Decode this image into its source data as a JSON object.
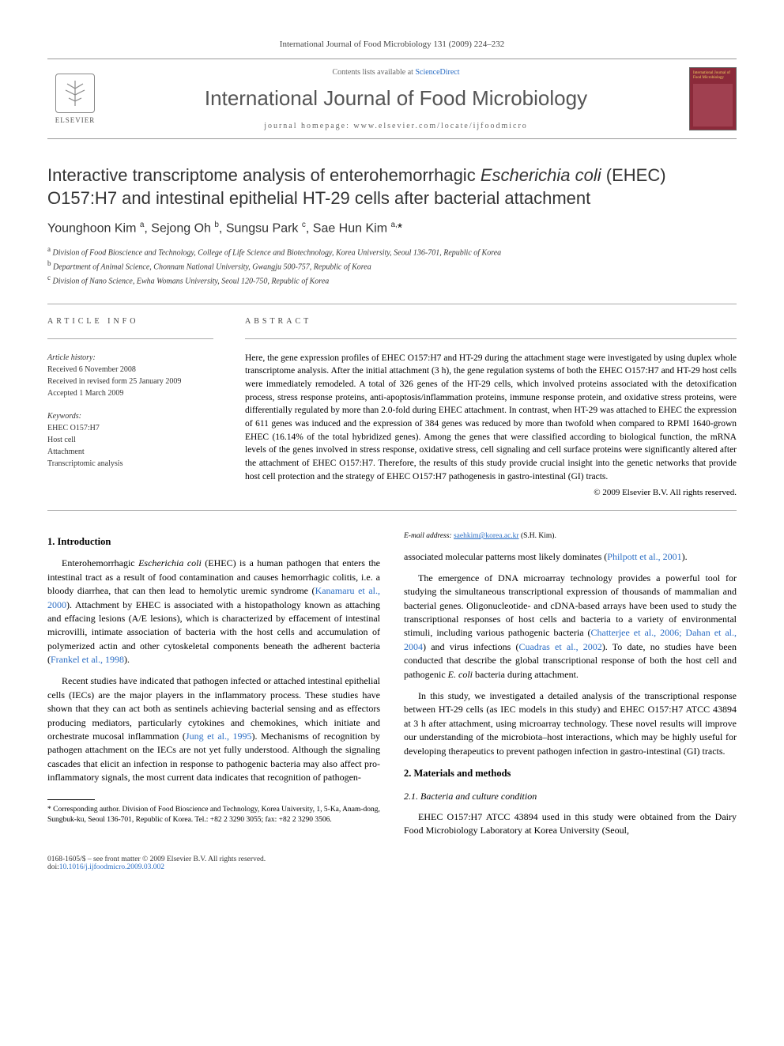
{
  "journal": {
    "header_line": "International Journal of Food Microbiology 131 (2009) 224–232",
    "contents_prefix": "Contents lists available at ",
    "contents_link": "ScienceDirect",
    "name": "International Journal of Food Microbiology",
    "homepage_prefix": "journal homepage: ",
    "homepage_url": "www.elsevier.com/locate/ijfoodmicro",
    "publisher": "ELSEVIER",
    "cover_label": "International Journal of Food Microbiology"
  },
  "article": {
    "title_part1": "Interactive transcriptome analysis of enterohemorrhagic ",
    "title_italic": "Escherichia coli",
    "title_part2": " (EHEC) O157:H7 and intestinal epithelial HT-29 cells after bacterial attachment",
    "authors_html": "Younghoon Kim <sup>a</sup>, Sejong Oh <sup>b</sup>, Sungsu Park <sup>c</sup>, Sae Hun Kim <sup>a,</sup><span class='star-corr'>*</span>",
    "affiliations": [
      {
        "sup": "a",
        "text": "Division of Food Bioscience and Technology, College of Life Science and Biotechnology, Korea University, Seoul 136-701, Republic of Korea"
      },
      {
        "sup": "b",
        "text": "Department of Animal Science, Chonnam National University, Gwangju 500-757, Republic of Korea"
      },
      {
        "sup": "c",
        "text": "Division of Nano Science, Ewha Womans University, Seoul 120-750, Republic of Korea"
      }
    ]
  },
  "info": {
    "header": "ARTICLE INFO",
    "history_label": "Article history:",
    "received": "Received 6 November 2008",
    "revised": "Received in revised form 25 January 2009",
    "accepted": "Accepted 1 March 2009",
    "keywords_label": "Keywords:",
    "keywords": [
      "EHEC O157:H7",
      "Host cell",
      "Attachment",
      "Transcriptomic analysis"
    ]
  },
  "abstract": {
    "header": "ABSTRACT",
    "text": "Here, the gene expression profiles of EHEC O157:H7 and HT-29 during the attachment stage were investigated by using duplex whole transcriptome analysis. After the initial attachment (3 h), the gene regulation systems of both the EHEC O157:H7 and HT-29 host cells were immediately remodeled. A total of 326 genes of the HT-29 cells, which involved proteins associated with the detoxification process, stress response proteins, anti-apoptosis/inflammation proteins, immune response protein, and oxidative stress proteins, were differentially regulated by more than 2.0-fold during EHEC attachment. In contrast, when HT-29 was attached to EHEC the expression of 611 genes was induced and the expression of 384 genes was reduced by more than twofold when compared to RPMI 1640-grown EHEC (16.14% of the total hybridized genes). Among the genes that were classified according to biological function, the mRNA levels of the genes involved in stress response, oxidative stress, cell signaling and cell surface proteins were significantly altered after the attachment of EHEC O157:H7. Therefore, the results of this study provide crucial insight into the genetic networks that provide host cell protection and the strategy of EHEC O157:H7 pathogenesis in gastro-intestinal (GI) tracts.",
    "copyright": "© 2009 Elsevier B.V. All rights reserved."
  },
  "body": {
    "intro_heading": "1. Introduction",
    "p1_a": "Enterohemorrhagic ",
    "p1_italic1": "Escherichia coli",
    "p1_b": " (EHEC) is a human pathogen that enters the intestinal tract as a result of food contamination and causes hemorrhagic colitis, i.e. a bloody diarrhea, that can then lead to hemolytic uremic syndrome (",
    "p1_cite1": "Kanamaru et al., 2000",
    "p1_c": "). Attachment by EHEC is associated with a histopathology known as attaching and effacing lesions (A/E lesions), which is characterized by effacement of intestinal microvilli, intimate association of bacteria with the host cells and accumulation of polymerized actin and other cytoskeletal components beneath the adherent bacteria (",
    "p1_cite2": "Frankel et al., 1998",
    "p1_d": ").",
    "p2_a": "Recent studies have indicated that pathogen infected or attached intestinal epithelial cells (IECs) are the major players in the inflammatory process. These studies have shown that they can act both as sentinels achieving bacterial sensing and as effectors producing mediators, particularly cytokines and chemokines, which initiate and orchestrate mucosal inflammation (",
    "p2_cite1": "Jung et al., 1995",
    "p2_b": "). Mechanisms of recognition by pathogen attachment on the IECs are not yet fully understood. Although the signaling cascades that elicit an infection in response to pathogenic bacteria may also affect pro-inflammatory signals, the most current data indicates that recognition of pathogen-",
    "p3_a": "associated molecular patterns most likely dominates (",
    "p3_cite1": "Philpott et al., 2001",
    "p3_b": ").",
    "p4_a": "The emergence of DNA microarray technology provides a powerful tool for studying the simultaneous transcriptional expression of thousands of mammalian and bacterial genes. Oligonucleotide- and cDNA-based arrays have been used to study the transcriptional responses of host cells and bacteria to a variety of environmental stimuli, including various pathogenic bacteria (",
    "p4_cite1": "Chatterjee et al., 2006; Dahan et al., 2004",
    "p4_b": ") and virus infections (",
    "p4_cite2": "Cuadras et al., 2002",
    "p4_c": "). To date, no studies have been conducted that describe the global transcriptional response of both the host cell and pathogenic ",
    "p4_italic1": "E. coli",
    "p4_d": " bacteria during attachment.",
    "p5": "In this study, we investigated a detailed analysis of the transcriptional response between HT-29 cells (as IEC models in this study) and EHEC O157:H7 ATCC 43894 at 3 h after attachment, using microarray technology. These novel results will improve our understanding of the microbiota–host interactions, which may be highly useful for developing therapeutics to prevent pathogen infection in gastro-intestinal (GI) tracts.",
    "mm_heading": "2. Materials and methods",
    "mm_sub": "2.1. Bacteria and culture condition",
    "p6": "EHEC O157:H7 ATCC 43894 used in this study were obtained from the Dairy Food Microbiology Laboratory at Korea University (Seoul,"
  },
  "footnote": {
    "corr": "* Corresponding author. Division of Food Bioscience and Technology, Korea University, 1, 5-Ka, Anam-dong, Sungbuk-ku, Seoul 136-701, Republic of Korea. Tel.: +82 2 3290 3055; fax: +82 2 3290 3506.",
    "email_label": "E-mail address:",
    "email": "saehkim@korea.ac.kr",
    "email_suffix": "(S.H. Kim)."
  },
  "footer": {
    "issn": "0168-1605/$ – see front matter © 2009 Elsevier B.V. All rights reserved.",
    "doi_prefix": "doi:",
    "doi": "10.1016/j.ijfoodmicro.2009.03.002"
  }
}
